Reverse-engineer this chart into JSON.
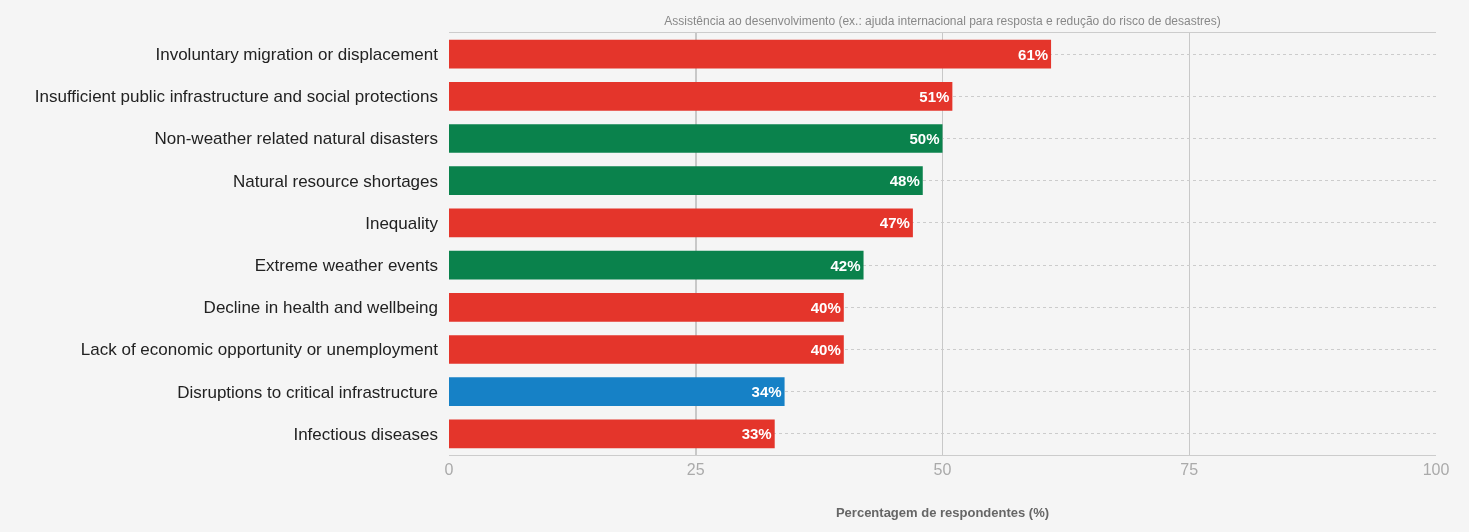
{
  "chart_data": {
    "type": "bar",
    "orientation": "horizontal",
    "title": "Assistência ao desenvolvimento (ex.: ajuda internacional para resposta e redução do risco de desastres)",
    "xlabel": "Percentagem de respondentes (%)",
    "categories": [
      "Involuntary migration or displacement",
      "Insufficient public infrastructure and social protections",
      "Non-weather related natural disasters",
      "Natural resource shortages",
      "Inequality",
      "Extreme weather events",
      "Decline in health and wellbeing",
      "Lack of economic opportunity or unemployment",
      "Disruptions to critical infrastructure",
      "Infectious diseases"
    ],
    "values": [
      61,
      51,
      50,
      48,
      47,
      42,
      40,
      40,
      34,
      33
    ],
    "value_labels": [
      "61%",
      "51%",
      "50%",
      "48%",
      "47%",
      "42%",
      "40%",
      "40%",
      "34%",
      "33%"
    ],
    "colors": [
      "#e4352b",
      "#e4352b",
      "#0a824c",
      "#0a824c",
      "#e4352b",
      "#0a824c",
      "#e4352b",
      "#e4352b",
      "#1681c6",
      "#e4352b"
    ],
    "xlim": [
      0,
      100
    ],
    "xticks": [
      0,
      25,
      50,
      75,
      100
    ],
    "grid": true
  }
}
